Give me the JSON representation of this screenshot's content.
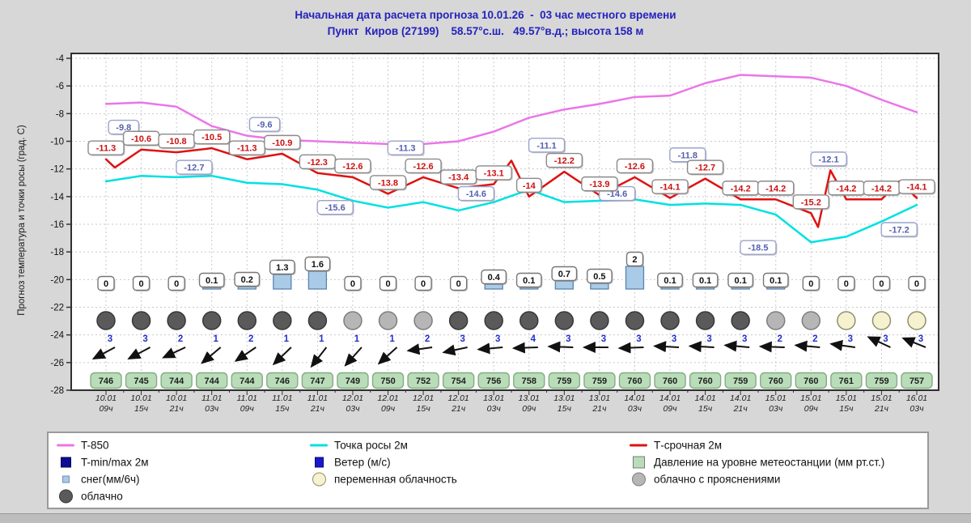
{
  "title": {
    "line1": "Начальная дата расчета прогноза 10.01.26  -  03 час местного времени",
    "line2": "Пункт  Киров (27199)    58.57°с.ш.   49.57°в.д.; высота 158 м"
  },
  "y_axis": {
    "title": "Прогноз температура и точки росы (град. С)",
    "max": -4,
    "min": -28,
    "tick_step": 2
  },
  "x_axis": {
    "labels": [
      {
        "d": "10.01",
        "h": "09ч"
      },
      {
        "d": "10.01",
        "h": "15ч"
      },
      {
        "d": "10.01",
        "h": "21ч"
      },
      {
        "d": "11.01",
        "h": "03ч"
      },
      {
        "d": "11.01",
        "h": "09ч"
      },
      {
        "d": "11.01",
        "h": "15ч"
      },
      {
        "d": "11.01",
        "h": "21ч"
      },
      {
        "d": "12.01",
        "h": "03ч"
      },
      {
        "d": "12.01",
        "h": "09ч"
      },
      {
        "d": "12.01",
        "h": "15ч"
      },
      {
        "d": "12.01",
        "h": "21ч"
      },
      {
        "d": "13.01",
        "h": "03ч"
      },
      {
        "d": "13.01",
        "h": "09ч"
      },
      {
        "d": "13.01",
        "h": "15ч"
      },
      {
        "d": "13.01",
        "h": "21ч"
      },
      {
        "d": "14.01",
        "h": "03ч"
      },
      {
        "d": "14.01",
        "h": "09ч"
      },
      {
        "d": "14.01",
        "h": "15ч"
      },
      {
        "d": "14.01",
        "h": "21ч"
      },
      {
        "d": "15.01",
        "h": "03ч"
      },
      {
        "d": "15.01",
        "h": "09ч"
      },
      {
        "d": "15.01",
        "h": "15ч"
      },
      {
        "d": "15.01",
        "h": "21ч"
      },
      {
        "d": "16.01",
        "h": "03ч"
      }
    ]
  },
  "chart_data": {
    "type": "line",
    "categories": [
      "10.01 09ч",
      "10.01 15ч",
      "10.01 21ч",
      "11.01 03ч",
      "11.01 09ч",
      "11.01 15ч",
      "11.01 21ч",
      "12.01 03ч",
      "12.01 09ч",
      "12.01 15ч",
      "12.01 21ч",
      "13.01 03ч",
      "13.01 09ч",
      "13.01 15ч",
      "13.01 21ч",
      "14.01 03ч",
      "14.01 09ч",
      "14.01 15ч",
      "14.01 21ч",
      "15.01 03ч",
      "15.01 09ч",
      "15.01 15ч",
      "15.01 21ч",
      "16.01 03ч"
    ],
    "ylim": [
      -28,
      -4
    ],
    "series": [
      {
        "name": "Т-850",
        "color": "#ea76e8",
        "labeled": false,
        "values": [
          -7.3,
          -7.2,
          -7.5,
          -8.9,
          -9.6,
          -9.9,
          -10.0,
          -10.1,
          -10.2,
          -10.2,
          -10.0,
          -9.3,
          -8.3,
          -7.7,
          -7.3,
          -6.8,
          -6.7,
          -5.8,
          -5.2,
          -5.3,
          -5.4,
          -6.0,
          -7.0,
          -7.9
        ]
      },
      {
        "name": "Точка росы 2м",
        "color": "#00e1e1",
        "labeled": false,
        "values": [
          -12.9,
          -12.5,
          -12.6,
          -12.5,
          -13.0,
          -13.1,
          -13.5,
          -14.3,
          -14.8,
          -14.4,
          -15.0,
          -14.4,
          -13.5,
          -14.4,
          -14.3,
          -14.2,
          -14.6,
          -14.5,
          -14.6,
          -15.3,
          -17.3,
          -16.9,
          -15.8,
          -14.6
        ]
      },
      {
        "name": "Т-срочная 2м",
        "color": "#df1212",
        "labeled": true,
        "values": [
          -11.3,
          -10.6,
          -10.8,
          -10.5,
          -11.3,
          -10.9,
          -12.3,
          -12.6,
          -13.8,
          -12.6,
          -13.4,
          -13.1,
          -14,
          -12.2,
          -13.9,
          -12.6,
          -14.1,
          -12.7,
          -14.2,
          -14.2,
          -15.2,
          -14.2,
          -14.2,
          -14.1
        ],
        "extra_points": [
          {
            "t": 0.25,
            "v": -11.9
          },
          {
            "t": 11.5,
            "v": -11.4
          },
          {
            "t": 20.2,
            "v": -16.2
          },
          {
            "t": 20.55,
            "v": -12.1
          },
          {
            "t": 22.5,
            "v": -12.9
          }
        ]
      }
    ],
    "minmax_labels": [
      {
        "t": 0.5,
        "v": -9.8
      },
      {
        "t": 2.5,
        "v": -12.7
      },
      {
        "t": 4.5,
        "v": -9.6
      },
      {
        "t": 6.5,
        "v": -15.6
      },
      {
        "t": 8.5,
        "v": -11.3
      },
      {
        "t": 10.5,
        "v": -14.6
      },
      {
        "t": 12.5,
        "v": -11.1
      },
      {
        "t": 14.5,
        "v": -14.6
      },
      {
        "t": 16.5,
        "v": -11.8
      },
      {
        "t": 18.5,
        "v": -18.5
      },
      {
        "t": 20.5,
        "v": -12.1
      },
      {
        "t": 22.5,
        "v": -17.2
      }
    ],
    "snow_mm": [
      0,
      0,
      0,
      0.1,
      0.2,
      1.3,
      1.6,
      0,
      0,
      0,
      0,
      0.4,
      0.1,
      0.7,
      0.5,
      2,
      0.1,
      0.1,
      0.1,
      0.1,
      0,
      0,
      0,
      0
    ],
    "wind_ms": [
      3,
      3,
      2,
      1,
      2,
      1,
      1,
      1,
      1,
      2,
      3,
      3,
      4,
      3,
      3,
      3,
      3,
      3,
      3,
      2,
      2,
      3,
      3,
      3
    ],
    "wind_arrow_deg": [
      152,
      152,
      155,
      140,
      146,
      136,
      128,
      132,
      138,
      172,
      168,
      175,
      178,
      182,
      180,
      178,
      183,
      183,
      185,
      182,
      185,
      188,
      205,
      202
    ],
    "cloud_types": [
      "o",
      "o",
      "o",
      "o",
      "o",
      "o",
      "o",
      "b",
      "b",
      "b",
      "o",
      "o",
      "o",
      "o",
      "o",
      "o",
      "o",
      "o",
      "o",
      "b",
      "b",
      "p",
      "p",
      "p"
    ],
    "pressure_mmhg": [
      746,
      745,
      744,
      744,
      744,
      746,
      747,
      749,
      750,
      752,
      754,
      756,
      758,
      759,
      759,
      760,
      760,
      760,
      759,
      760,
      760,
      761,
      759,
      757
    ]
  },
  "colors": {
    "page_bg": "#d7d7d7",
    "plot_bg": "#ffffff",
    "grid": "#c9c9c9",
    "border": "#2f2f2f",
    "temp_label_text": "#cc1111",
    "minmax_label_text": "#5560b0",
    "snow_bar_fill": "#a9cbe8",
    "snow_bar_stroke": "#5b84ad",
    "pressure_fill": "#b9ddb9",
    "pressure_stroke": "#84ab84",
    "wind_number": "#2030cf",
    "cloud_o_fill": "#5a5a5a",
    "cloud_o_stroke": "#383838",
    "cloud_b_fill": "#b6b6b6",
    "cloud_b_stroke": "#7d7d7d",
    "cloud_p_fill": "#f6f1cf",
    "cloud_p_stroke": "#8f8f70"
  },
  "legend": {
    "columns": [
      [
        {
          "key": "t850",
          "marker": "line-pink",
          "label": "T-850"
        },
        {
          "key": "tminmax",
          "marker": "square-navy",
          "label": "T-min/max 2м"
        },
        {
          "key": "snow",
          "marker": "square-lightblue",
          "label": "снег(мм/6ч)"
        },
        {
          "key": "overcast",
          "marker": "circle-dark",
          "label": "облачно"
        }
      ],
      [
        {
          "key": "dewpoint",
          "marker": "line-cyan",
          "label": "Точка росы 2м"
        },
        {
          "key": "wind",
          "marker": "square-blue",
          "label": "Ветер (м/с)"
        },
        {
          "key": "partly-cloudy",
          "marker": "circle-cream",
          "label": "переменная облачность"
        }
      ],
      [
        {
          "key": "t-srochnaya",
          "marker": "line-red",
          "label": "Т-срочная 2м"
        },
        {
          "key": "pressure",
          "marker": "square-green",
          "label": "Давление на уровне метеостанции (мм рт.ст.)"
        },
        {
          "key": "broken-clouds",
          "marker": "circle-gray",
          "label": "облачно с прояснениями"
        }
      ]
    ]
  }
}
